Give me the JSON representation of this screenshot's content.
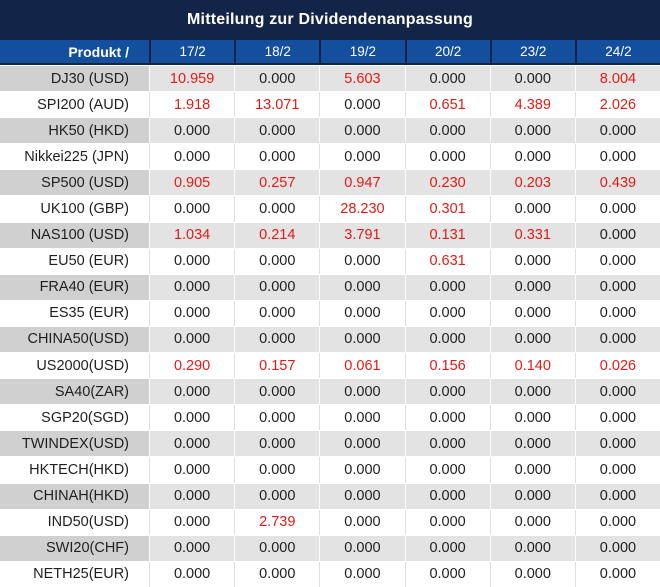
{
  "title": "Mitteilung zur Dividendenanpassung",
  "table": {
    "product_header": "Produkt /",
    "date_columns": [
      "17/2",
      "18/2",
      "19/2",
      "20/2",
      "23/2",
      "24/2"
    ],
    "rows": [
      {
        "product": "DJ30 (USD)",
        "values": [
          "10.959",
          "0.000",
          "5.603",
          "0.000",
          "0.000",
          "8.004"
        ]
      },
      {
        "product": "SPI200 (AUD)",
        "values": [
          "1.918",
          "13.071",
          "0.000",
          "0.651",
          "4.389",
          "2.026"
        ]
      },
      {
        "product": "HK50 (HKD)",
        "values": [
          "0.000",
          "0.000",
          "0.000",
          "0.000",
          "0.000",
          "0.000"
        ]
      },
      {
        "product": "Nikkei225 (JPN)",
        "values": [
          "0.000",
          "0.000",
          "0.000",
          "0.000",
          "0.000",
          "0.000"
        ]
      },
      {
        "product": "SP500 (USD)",
        "values": [
          "0.905",
          "0.257",
          "0.947",
          "0.230",
          "0.203",
          "0.439"
        ]
      },
      {
        "product": "UK100 (GBP)",
        "values": [
          "0.000",
          "0.000",
          "28.230",
          "0.301",
          "0.000",
          "0.000"
        ]
      },
      {
        "product": "NAS100 (USD)",
        "values": [
          "1.034",
          "0.214",
          "3.791",
          "0.131",
          "0.331",
          "0.000"
        ]
      },
      {
        "product": "EU50 (EUR)",
        "values": [
          "0.000",
          "0.000",
          "0.000",
          "0.631",
          "0.000",
          "0.000"
        ]
      },
      {
        "product": "FRA40 (EUR)",
        "values": [
          "0.000",
          "0.000",
          "0.000",
          "0.000",
          "0.000",
          "0.000"
        ]
      },
      {
        "product": "ES35 (EUR)",
        "values": [
          "0.000",
          "0.000",
          "0.000",
          "0.000",
          "0.000",
          "0.000"
        ]
      },
      {
        "product": "CHINA50(USD)",
        "values": [
          "0.000",
          "0.000",
          "0.000",
          "0.000",
          "0.000",
          "0.000"
        ]
      },
      {
        "product": "US2000(USD)",
        "values": [
          "0.290",
          "0.157",
          "0.061",
          "0.156",
          "0.140",
          "0.026"
        ]
      },
      {
        "product": "SA40(ZAR)",
        "values": [
          "0.000",
          "0.000",
          "0.000",
          "0.000",
          "0.000",
          "0.000"
        ]
      },
      {
        "product": "SGP20(SGD)",
        "values": [
          "0.000",
          "0.000",
          "0.000",
          "0.000",
          "0.000",
          "0.000"
        ]
      },
      {
        "product": "TWINDEX(USD)",
        "values": [
          "0.000",
          "0.000",
          "0.000",
          "0.000",
          "0.000",
          "0.000"
        ]
      },
      {
        "product": "HKTECH(HKD)",
        "values": [
          "0.000",
          "0.000",
          "0.000",
          "0.000",
          "0.000",
          "0.000"
        ]
      },
      {
        "product": "CHINAH(HKD)",
        "values": [
          "0.000",
          "0.000",
          "0.000",
          "0.000",
          "0.000",
          "0.000"
        ]
      },
      {
        "product": "IND50(USD)",
        "values": [
          "0.000",
          "2.739",
          "0.000",
          "0.000",
          "0.000",
          "0.000"
        ]
      },
      {
        "product": "SWI20(CHF)",
        "values": [
          "0.000",
          "0.000",
          "0.000",
          "0.000",
          "0.000",
          "0.000"
        ]
      },
      {
        "product": "NETH25(EUR)",
        "values": [
          "0.000",
          "0.000",
          "0.000",
          "0.000",
          "0.000",
          "0.000"
        ]
      }
    ]
  },
  "colors": {
    "title_bar_bg": "#122548",
    "header_bg": "#144f9e",
    "row_bg": "#ffffff",
    "row_alt_bg": "#e3e3e3",
    "row_alt_product_bg": "#d0d0d0",
    "value_red": "#e31b14",
    "value_black": "#1f1f1f",
    "text_white": "#ffffff"
  }
}
